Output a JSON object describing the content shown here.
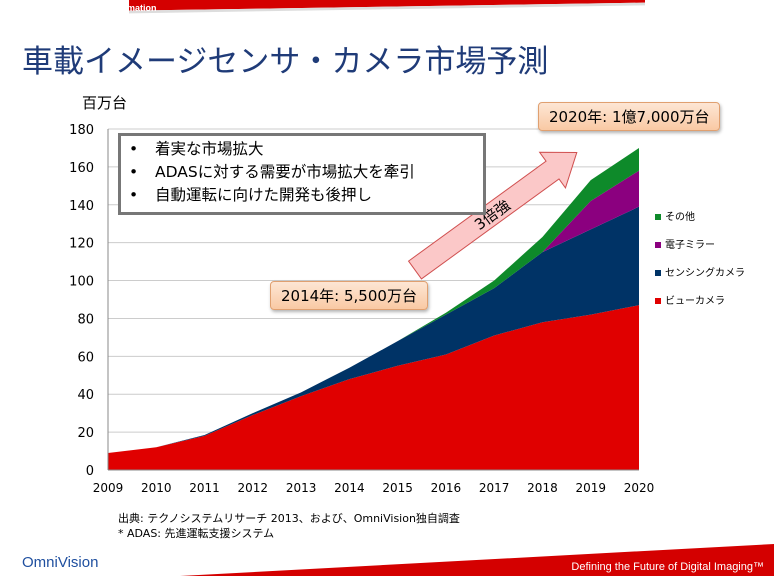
{
  "header": {
    "security": "No Security: Public Information",
    "title": "車載イメージセンサ・カメラ市場予測"
  },
  "callouts": {
    "c2014": "2014年: 5,500万台",
    "c2020": "2020年: 1億7,000万台",
    "arrow": "3倍強"
  },
  "bullets": [
    "着実な市場拡大",
    "ADASに対する需要が市場拡大を牽引",
    "自動運転に向けた開発も後押し"
  ],
  "footer": {
    "source": "出典: テクノシステムリサーチ 2013、および、OmniVision独自調査",
    "note": "* ADAS: 先進運転支援システム",
    "logo": "OmniVision",
    "tagline": "Defining the Future of Digital Imaging™"
  },
  "chart_data": {
    "type": "area",
    "stacked": true,
    "ylabel": "百万台",
    "ylim": [
      0,
      180
    ],
    "yticks": [
      0,
      20,
      40,
      60,
      80,
      100,
      120,
      140,
      160,
      180
    ],
    "x": [
      "2009",
      "2010",
      "2011",
      "2012",
      "2013",
      "2014",
      "2015",
      "2016",
      "2017",
      "2018",
      "2019",
      "2020"
    ],
    "grid": true,
    "legend": "right",
    "series": [
      {
        "name": "ビューカメラ",
        "color": "#e00000",
        "values": [
          9,
          12,
          18,
          29,
          39,
          48,
          55,
          61,
          71,
          78,
          82,
          87
        ]
      },
      {
        "name": "センシングカメラ",
        "color": "#003366",
        "values": [
          0,
          0,
          0.5,
          1,
          2,
          6,
          13,
          21,
          25,
          37,
          45,
          52
        ]
      },
      {
        "name": "電子ミラー",
        "color": "#8b007f",
        "values": [
          0,
          0,
          0,
          0,
          0,
          0,
          0,
          0,
          0,
          0,
          15,
          19
        ]
      },
      {
        "name": "その他",
        "color": "#0e8a2a",
        "values": [
          0,
          0,
          0,
          0,
          0,
          0,
          0,
          1,
          4,
          8,
          11,
          12
        ]
      }
    ]
  }
}
